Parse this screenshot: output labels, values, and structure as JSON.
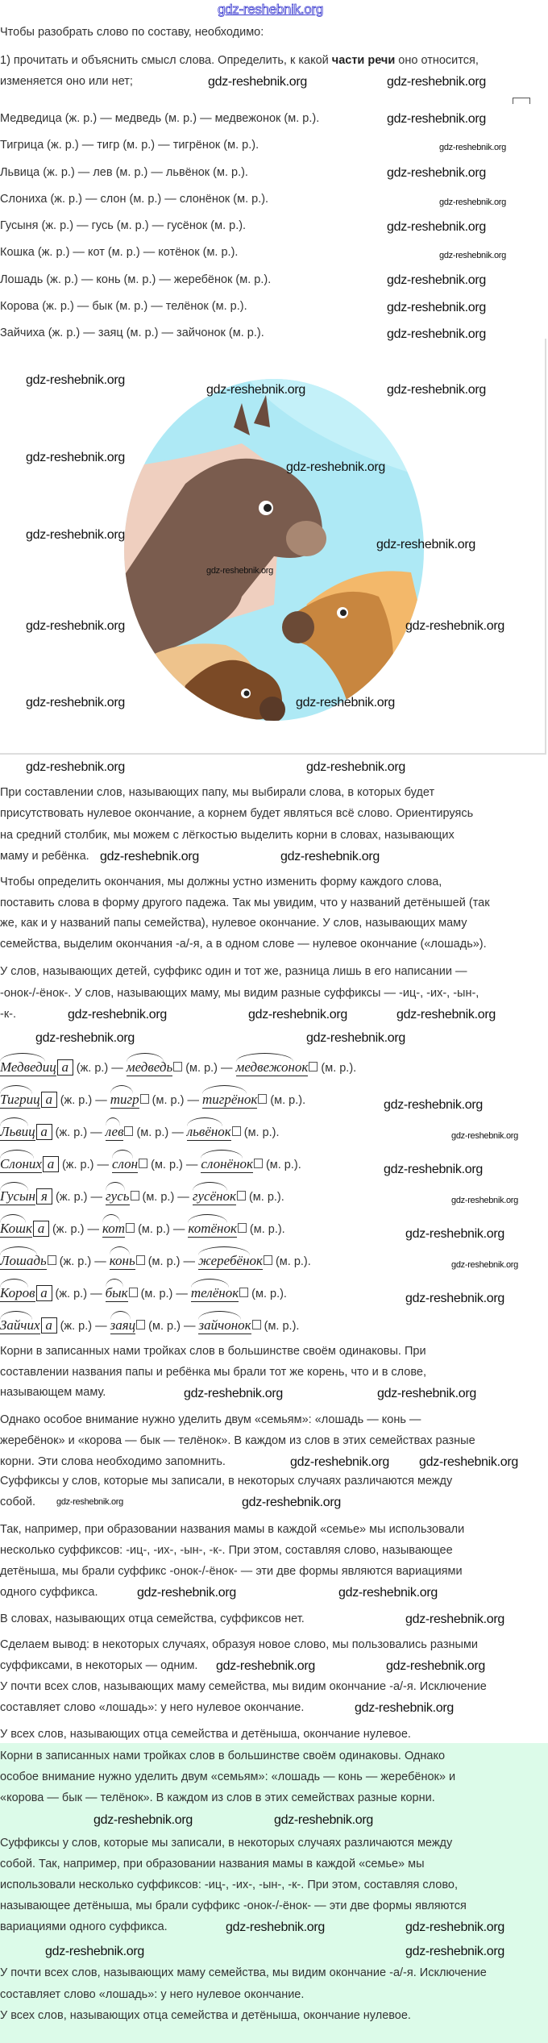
{
  "watermark": "gdz-reshebnik.org",
  "intro": {
    "title": "Чтобы разобрать слово по составу, необходимо:",
    "step1_before": "1) прочитать и объяснить смысл слова. Определить, к какой ",
    "step1_bold": "части речи",
    "step1_after": " оно относится,",
    "step1_line2": "изменяется оно или нет;"
  },
  "word_list": [
    "Медведица (ж. р.) — медведь (м. р.) — медвежонок (м. р.).",
    "Тигрица (ж. р.) — тигр (м. р.) — тигрёнок (м. р.).",
    "Львица (ж. р.) — лев (м. р.) — львёнок (м. р.).",
    "Слониха (ж. р.) — слон (м. р.) — слонёнок (м. р.).",
    "Гусыня (ж. р.) — гусь (м. р.) — гусёнок (м. р.).",
    "Кошка (ж. р.) — кот (м. р.) — котёнок (м. р.).",
    "Лошадь (ж. р.) — конь (м. р.) — жеребёнок (м. р.).",
    "Корова (ж. р.) — бык (м. р.) — телёнок (м. р.).",
    "Зайчиха (ж. р.) — заяц (м. р.) — зайчонок (м. р.)."
  ],
  "paragraphs": {
    "p1": [
      "При составлении слов, называющих папу, мы выбирали слова, в которых будет",
      "присутствовать нулевое окончание, а корнем будет являться всё слово. Ориентируясь",
      "на средний столбик, мы можем с лёгкостью выделить корни в словах, называющих",
      "маму и ребёнка."
    ],
    "p2": [
      "Чтобы определить окончания, мы должны устно изменить форму каждого слова,",
      "поставить слова в форму другого падежа. Так мы увидим, что у названий детёнышей (так",
      "же, как и у названий папы семейства), нулевое окончание. У слов, называющих маму",
      "семейства, выделим окончания -а/-я, а в одном слове — нулевое окончание («лошадь»)."
    ],
    "p3": [
      "У слов, называющих детей, суффикс один и тот же, разница лишь в его написании —",
      "-онок-/-ёнок-. У слов, называющих маму, мы видим разные суффиксы — -иц-, -их-, -ын-,",
      "-к-."
    ],
    "p4": [
      "Корни в записанных нами тройках слов в большинстве своём одинаковы. При",
      "составлении названия папы и ребёнка мы брали тот же корень, что и в слове,",
      "называющем маму."
    ],
    "p5": [
      "Однако особое внимание нужно уделить двум «семьям»: «лошадь — конь —",
      "жеребёнок» и «корова — бык — телёнок». В каждом из слов в этих семействах разные",
      "корни. Эти слова необходимо запомнить."
    ],
    "p6": [
      "Суффиксы у слов, которые мы записали, в некоторых случаях различаются между",
      "собой."
    ],
    "p7": [
      "Так, например, при образовании названия мамы в каждой «семье» мы использовали",
      "несколько суффиксов: -иц-, -их-, -ын-, -к-. При этом, составляя слово, называющее",
      "детёныша, мы брали суффикс -онок-/-ёнок- — эти две формы являются вариациями",
      "одного суффикса."
    ],
    "p8": [
      "В словах, называющих отца семейства, суффиксов нет."
    ],
    "p9": [
      "Сделаем вывод: в некоторых случаях, образуя новое слово, мы пользовались разными",
      "суффиксами, в некоторых — одним."
    ],
    "p10": [
      "У почти всех слов, называющих маму семейства, мы видим окончание -а/-я. Исключение",
      "составляет слово «лошадь»: у него нулевое окончание."
    ],
    "p11": [
      "У всех слов, называющих отца семейства и детёныша, окончание нулевое."
    ]
  },
  "summary": {
    "s1": [
      "Корни в записанных нами тройках слов в большинстве своём одинаковы. Однако",
      "особое внимание нужно уделить двум «семьям»: «лошадь — конь — жеребёнок» и",
      "«корова — бык — телёнок». В каждом из слов в этих семействах разные корни."
    ],
    "s2": [
      "Суффиксы у слов, которые мы записали, в некоторых случаях различаются между",
      "собой. Так, например, при образовании названия мамы в каждой «семье» мы",
      "использовали несколько суффиксов: -иц-, -их-, -ын-, -к-. При этом, составляя слово,",
      "называющее детёныша, мы брали суффикс -онок-/-ёнок- — эти две формы являются",
      "вариациями одного суффикса."
    ],
    "s3": [
      "У почти всех слов, называющих маму семейства, мы видим окончание -а/-я. Исключение",
      "составляет слово «лошадь»: у него нулевое окончание."
    ],
    "s4": [
      "У всех слов, называющих отца семейства и детёныша, окончание нулевое."
    ]
  },
  "morpheme_labels": {
    "fem": "(ж. р.) —",
    "masc": "(м. р.) —",
    "masc_end": "(м. р.)."
  },
  "morpheme_rows": [
    {
      "mother": [
        "Медведиц",
        "а"
      ],
      "father": [
        "медведь",
        ""
      ],
      "child": [
        "медвежонок",
        ""
      ]
    },
    {
      "mother": [
        "Тигриц",
        "а"
      ],
      "father": [
        "тигр",
        ""
      ],
      "child": [
        "тигрёнок",
        ""
      ]
    },
    {
      "mother": [
        "Львиц",
        "а"
      ],
      "father": [
        "лев",
        ""
      ],
      "child": [
        "львёнок",
        ""
      ]
    },
    {
      "mother": [
        "Слоних",
        "а"
      ],
      "father": [
        "слон",
        ""
      ],
      "child": [
        "слонёнок",
        ""
      ]
    },
    {
      "mother": [
        "Гусын",
        "я"
      ],
      "father": [
        "гусь",
        ""
      ],
      "child": [
        "гусёнок",
        ""
      ]
    },
    {
      "mother": [
        "Кошк",
        "а"
      ],
      "father": [
        "кот",
        ""
      ],
      "child": [
        "котёнок",
        ""
      ]
    },
    {
      "mother": [
        "Лошадь",
        ""
      ],
      "father": [
        "конь",
        ""
      ],
      "child": [
        "жеребёнок",
        ""
      ]
    },
    {
      "mother": [
        "Коров",
        "а"
      ],
      "father": [
        "бык",
        ""
      ],
      "child": [
        "телёнок",
        ""
      ]
    },
    {
      "mother": [
        "Зайчих",
        "а"
      ],
      "father": [
        "заяц",
        ""
      ],
      "child": [
        "зайчонок",
        ""
      ]
    }
  ],
  "colors": {
    "summary_bg": "#dcfbe9",
    "sky": "#aee9f5"
  }
}
